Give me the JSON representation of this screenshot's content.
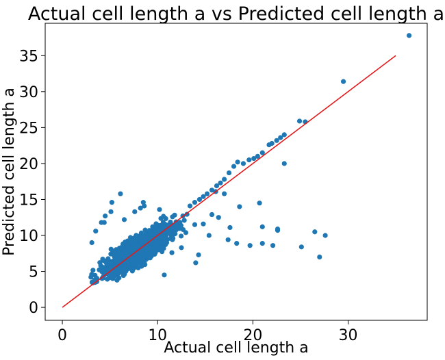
{
  "colors": {
    "points": "#1f77b4",
    "identity_line": "#e31a1c",
    "axes": "#000000",
    "background": "#ffffff"
  },
  "chart_data": {
    "type": "scatter",
    "title": "Actual cell length a vs Predicted cell length a",
    "xlabel": "Actual cell length a",
    "ylabel": "Predicted cell length a",
    "xlim": [
      -1.8,
      38.3
    ],
    "ylim": [
      -1.8,
      39.5
    ],
    "xticks": [
      0,
      10,
      20,
      30
    ],
    "yticks": [
      0,
      5,
      10,
      15,
      20,
      25,
      30,
      35
    ],
    "grid": false,
    "legend": "none",
    "reference_line": {
      "x": [
        0,
        35
      ],
      "y": [
        0,
        35
      ]
    },
    "dense_cluster": {
      "center": [
        8,
        8.5
      ],
      "x_range": [
        3,
        15
      ],
      "y_range": [
        3.2,
        13.5
      ],
      "approx_points": 1800
    },
    "series": [
      {
        "points": [
          [
            36.4,
            37.8
          ],
          [
            29.5,
            31.4
          ],
          [
            25.5,
            25.8
          ],
          [
            24.9,
            25.9
          ],
          [
            23.3,
            24.0
          ],
          [
            22.9,
            23.6
          ],
          [
            22.5,
            23.2
          ],
          [
            22.0,
            22.8
          ],
          [
            21.7,
            22.6
          ],
          [
            21.0,
            21.5
          ],
          [
            20.5,
            21.0
          ],
          [
            20.1,
            20.7
          ],
          [
            19.6,
            20.5
          ],
          [
            19.0,
            20.0
          ],
          [
            18.4,
            20.2
          ],
          [
            18.0,
            19.6
          ],
          [
            17.5,
            18.7
          ],
          [
            17.0,
            17.8
          ],
          [
            16.6,
            17.3
          ],
          [
            16.2,
            16.9
          ],
          [
            15.7,
            16.3
          ],
          [
            15.2,
            15.8
          ],
          [
            14.8,
            15.4
          ],
          [
            14.4,
            15.0
          ],
          [
            13.9,
            14.6
          ],
          [
            13.4,
            14.1
          ],
          [
            23.3,
            20.0
          ],
          [
            20.7,
            14.5
          ],
          [
            21.0,
            11.2
          ],
          [
            21.0,
            8.9
          ],
          [
            22.1,
            8.6
          ],
          [
            22.6,
            10.7
          ],
          [
            22.6,
            10.9
          ],
          [
            25.1,
            8.4
          ],
          [
            26.5,
            10.5
          ],
          [
            27.0,
            7.0
          ],
          [
            27.6,
            10.0
          ],
          [
            19.7,
            8.6
          ],
          [
            18.6,
            14.0
          ],
          [
            18.3,
            8.9
          ],
          [
            17.6,
            11.1
          ],
          [
            17.4,
            9.4
          ],
          [
            17.0,
            15.8
          ],
          [
            16.4,
            12.5
          ],
          [
            16.1,
            16.1
          ],
          [
            15.7,
            12.9
          ],
          [
            15.4,
            10.0
          ],
          [
            14.8,
            11.6
          ],
          [
            14.3,
            7.3
          ],
          [
            13.9,
            11.5
          ],
          [
            14.0,
            6.2
          ],
          [
            12.8,
            12.1
          ],
          [
            12.5,
            8.3
          ],
          [
            11.5,
            7.6
          ],
          [
            10.7,
            4.5
          ],
          [
            8.5,
            14.6
          ],
          [
            8.6,
            14.1
          ],
          [
            10.2,
            13.6
          ],
          [
            7.6,
            13.3
          ],
          [
            6.1,
            15.8
          ],
          [
            5.2,
            14.6
          ],
          [
            4.5,
            12.7
          ],
          [
            4.4,
            11.8
          ],
          [
            5.1,
            13.3
          ],
          [
            3.1,
            9.0
          ],
          [
            3.5,
            10.6
          ],
          [
            3.0,
            4.2
          ],
          [
            3.2,
            3.4
          ],
          [
            3.4,
            3.8
          ],
          [
            4.1,
            11.8
          ],
          [
            8.2,
            13.8
          ],
          [
            6.5,
            12.2
          ]
        ]
      }
    ]
  }
}
